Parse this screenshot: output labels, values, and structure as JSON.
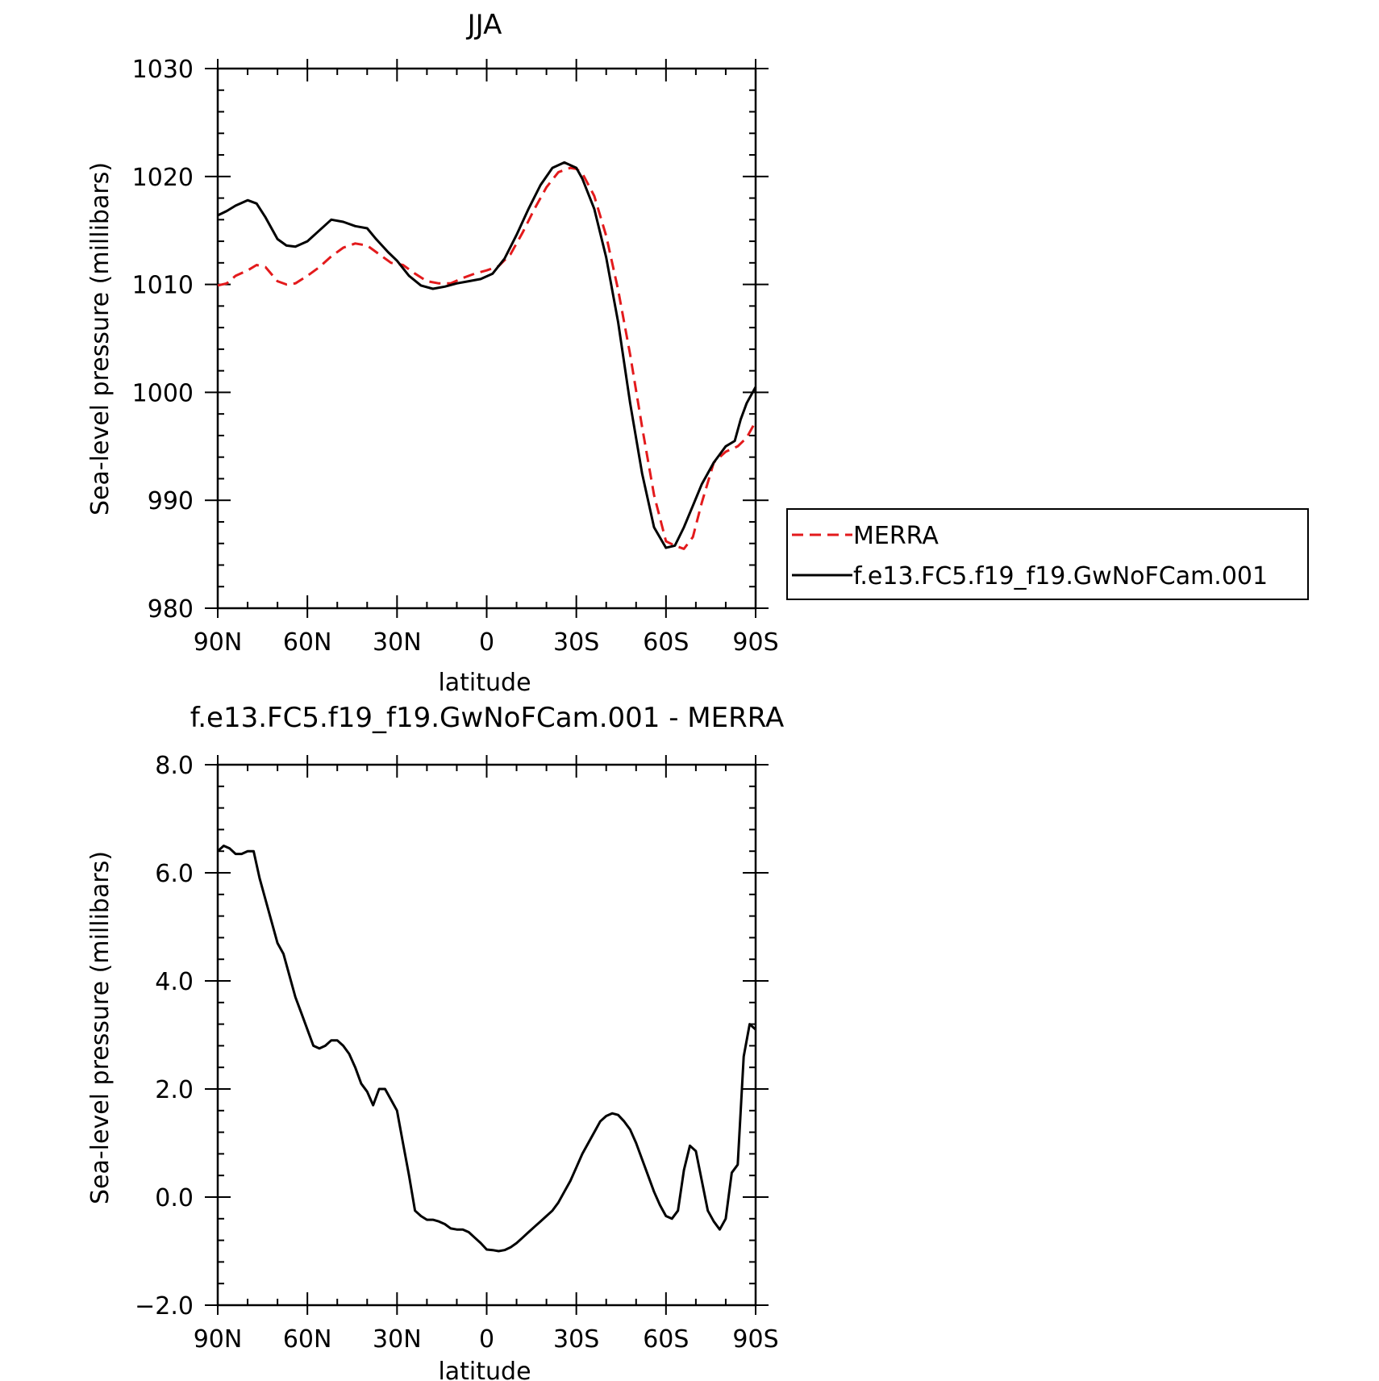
{
  "chart_data": [
    {
      "type": "line",
      "title": "JJA",
      "xlabel": "latitude",
      "ylabel": "Sea-level pressure (millibars)",
      "xlim": [
        90,
        -90
      ],
      "ylim": [
        980,
        1030
      ],
      "x_ticks": [
        90,
        60,
        30,
        0,
        -30,
        -60,
        -90
      ],
      "x_tick_labels": [
        "90N",
        "60N",
        "30N",
        "0",
        "30S",
        "60S",
        "90S"
      ],
      "y_ticks": [
        980,
        990,
        1000,
        1010,
        1020,
        1030
      ],
      "y_tick_labels": [
        "980",
        "990",
        "1000",
        "1010",
        "1020",
        "1030"
      ],
      "legend_placement": "right, outside plot",
      "series": [
        {
          "name": "MERRA",
          "color": "#e31a1c",
          "dash": "dashed",
          "x": [
            90,
            87,
            84,
            80,
            77,
            74,
            70,
            67,
            64,
            60,
            56,
            52,
            48,
            44,
            40,
            36,
            32,
            28,
            24,
            20,
            16,
            12,
            8,
            4,
            0,
            -4,
            -8,
            -12,
            -16,
            -20,
            -24,
            -28,
            -30,
            -32,
            -36,
            -40,
            -44,
            -48,
            -52,
            -56,
            -60,
            -63,
            -66,
            -69,
            -72,
            -76,
            -80,
            -84,
            -87,
            -90
          ],
          "y": [
            1009.9,
            1010.1,
            1010.8,
            1011.3,
            1011.8,
            1011.6,
            1010.3,
            1010.0,
            1010.1,
            1010.8,
            1011.6,
            1012.6,
            1013.4,
            1013.8,
            1013.6,
            1012.8,
            1012.0,
            1011.8,
            1011.0,
            1010.3,
            1010.1,
            1010.1,
            1010.6,
            1011.0,
            1011.3,
            1011.7,
            1012.8,
            1014.8,
            1017.0,
            1019.0,
            1020.4,
            1020.8,
            1020.7,
            1020.3,
            1018.2,
            1014.5,
            1009.5,
            1003.5,
            996.8,
            990.5,
            986.2,
            985.8,
            985.5,
            986.6,
            989.8,
            993.5,
            994.5,
            995.0,
            995.8,
            997.3
          ]
        },
        {
          "name": "f.e13.FC5.f19_f19.GwNoFCam.001",
          "color": "#000000",
          "dash": "solid",
          "x": [
            90,
            87,
            84,
            80,
            77,
            74,
            70,
            67,
            64,
            60,
            56,
            52,
            48,
            44,
            40,
            37,
            33,
            30,
            26,
            22,
            18,
            14,
            10,
            6,
            2,
            -2,
            -6,
            -10,
            -14,
            -18,
            -22,
            -26,
            -30,
            -32,
            -36,
            -40,
            -44,
            -48,
            -52,
            -56,
            -60,
            -63,
            -66,
            -69,
            -72,
            -76,
            -80,
            -83,
            -85,
            -87,
            -90
          ],
          "y": [
            1016.4,
            1016.8,
            1017.3,
            1017.8,
            1017.5,
            1016.2,
            1014.2,
            1013.6,
            1013.5,
            1014.0,
            1015.0,
            1016.0,
            1015.8,
            1015.4,
            1015.2,
            1014.2,
            1013.0,
            1012.2,
            1010.8,
            1009.9,
            1009.6,
            1009.8,
            1010.1,
            1010.3,
            1010.5,
            1011.0,
            1012.4,
            1014.6,
            1017.0,
            1019.2,
            1020.8,
            1021.3,
            1020.8,
            1019.8,
            1017.0,
            1012.5,
            1006.5,
            999.0,
            992.5,
            987.5,
            985.6,
            985.8,
            987.5,
            989.5,
            991.5,
            993.5,
            995.0,
            995.5,
            997.5,
            999.0,
            1000.5
          ]
        }
      ]
    },
    {
      "type": "line",
      "title": "f.e13.FC5.f19_f19.GwNoFCam.001 - MERRA",
      "xlabel": "latitude",
      "ylabel": "Sea-level pressure (millibars)",
      "xlim": [
        90,
        -90
      ],
      "ylim": [
        -2.0,
        8.0
      ],
      "x_ticks": [
        90,
        60,
        30,
        0,
        -30,
        -60,
        -90
      ],
      "x_tick_labels": [
        "90N",
        "60N",
        "30N",
        "0",
        "30S",
        "60S",
        "90S"
      ],
      "y_ticks": [
        -2,
        0,
        2,
        4,
        6,
        8
      ],
      "y_tick_labels": [
        "-2.0",
        "0.0",
        "2.0",
        "4.0",
        "6.0",
        "8.0"
      ],
      "series": [
        {
          "color": "#000000",
          "x": [
            90,
            88,
            86,
            84,
            82,
            80,
            78,
            76,
            74,
            72,
            70,
            68,
            66,
            64,
            62,
            60,
            58,
            56,
            54,
            52,
            50,
            48,
            46,
            44,
            42,
            40,
            38,
            36,
            34,
            32,
            30,
            28,
            26,
            24,
            22,
            20,
            18,
            16,
            14,
            12,
            10,
            8,
            6,
            4,
            2,
            0,
            -2,
            -4,
            -6,
            -8,
            -10,
            -12,
            -14,
            -16,
            -18,
            -20,
            -22,
            -24,
            -26,
            -28,
            -30,
            -32,
            -34,
            -36,
            -38,
            -40,
            -42,
            -44,
            -46,
            -48,
            -50,
            -52,
            -54,
            -56,
            -58,
            -60,
            -62,
            -64,
            -66,
            -68,
            -70,
            -72,
            -74,
            -76,
            -78,
            -80,
            -82,
            -84,
            -86,
            -88,
            -90
          ],
          "y": [
            6.4,
            6.5,
            6.45,
            6.35,
            6.35,
            6.4,
            6.4,
            5.9,
            5.5,
            5.1,
            4.7,
            4.5,
            4.1,
            3.7,
            3.4,
            3.1,
            2.8,
            2.75,
            2.8,
            2.9,
            2.9,
            2.8,
            2.65,
            2.4,
            2.1,
            1.95,
            1.7,
            2.0,
            2.0,
            1.8,
            1.6,
            1.0,
            0.4,
            -0.25,
            -0.35,
            -0.42,
            -0.42,
            -0.45,
            -0.5,
            -0.58,
            -0.6,
            -0.6,
            -0.65,
            -0.75,
            -0.85,
            -0.97,
            -0.98,
            -1.0,
            -0.98,
            -0.93,
            -0.85,
            -0.75,
            -0.65,
            -0.55,
            -0.45,
            -0.35,
            -0.25,
            -0.1,
            0.1,
            0.3,
            0.55,
            0.8,
            1.0,
            1.2,
            1.4,
            1.5,
            1.55,
            1.52,
            1.4,
            1.25,
            1.0,
            0.7,
            0.4,
            0.1,
            -0.15,
            -0.35,
            -0.4,
            -0.25,
            0.5,
            0.95,
            0.85,
            0.3,
            -0.25,
            -0.45,
            -0.6,
            -0.4,
            0.45,
            0.6,
            2.6,
            3.2,
            3.1
          ]
        }
      ]
    }
  ]
}
